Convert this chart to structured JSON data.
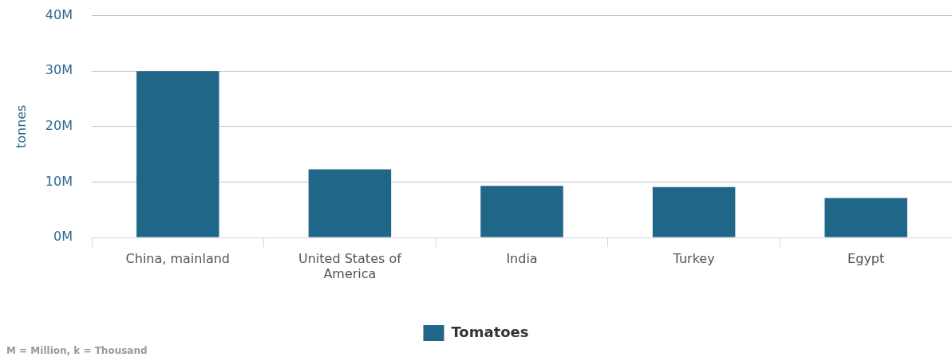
{
  "chart_data": {
    "type": "bar",
    "categories": [
      "China, mainland",
      "United States of America",
      "India",
      "Turkey",
      "Egypt"
    ],
    "series": [
      {
        "name": "Tomatoes",
        "color": "#1f6688",
        "values": [
          30000000,
          12300000,
          9300000,
          9100000,
          7100000
        ]
      }
    ],
    "ylabel": "tonnes",
    "ylim": [
      0,
      40000000
    ],
    "yticks": [
      {
        "value": 0,
        "label": "0M"
      },
      {
        "value": 10000000,
        "label": "10M"
      },
      {
        "value": 20000000,
        "label": "20M"
      },
      {
        "value": 30000000,
        "label": "30M"
      },
      {
        "value": 40000000,
        "label": "40M"
      }
    ],
    "grid": "y",
    "legend": "bottom",
    "annotations": [
      "M = Million, k = Thousand"
    ]
  }
}
